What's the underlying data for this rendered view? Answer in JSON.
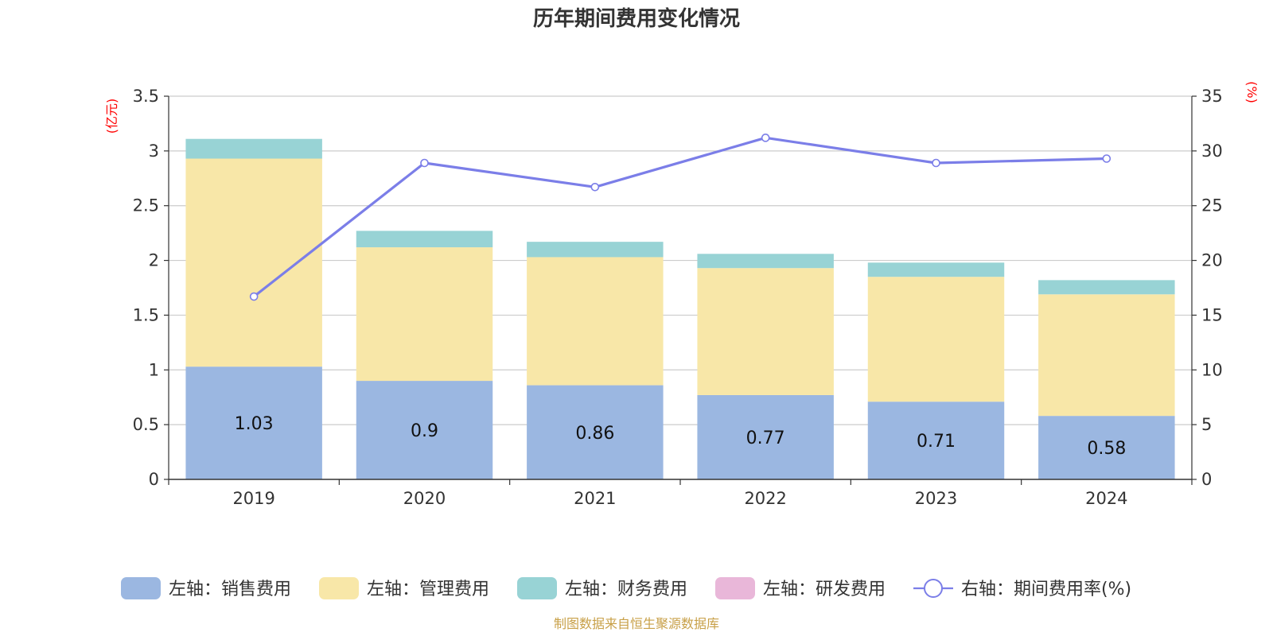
{
  "chart_data": {
    "type": "bar",
    "stacked": true,
    "title": "历年期间费用变化情况",
    "categories": [
      "2019",
      "2020",
      "2021",
      "2022",
      "2023",
      "2024"
    ],
    "left_axis": {
      "unit": "(亿元)",
      "range": [
        0,
        3.5
      ],
      "ticks": [
        "0",
        "0.5",
        "1",
        "1.5",
        "2",
        "2.5",
        "3",
        "3.5"
      ]
    },
    "right_axis": {
      "unit": "(%)",
      "range": [
        0,
        35
      ],
      "ticks": [
        "0",
        "5",
        "10",
        "15",
        "20",
        "25",
        "30",
        "35"
      ]
    },
    "grid": true,
    "legend_position": "bottom",
    "series": [
      {
        "name": "左轴：销售费用",
        "axis": "left",
        "type": "bar",
        "color": "#9bb7e1",
        "values": [
          1.03,
          0.9,
          0.86,
          0.77,
          0.71,
          0.58
        ],
        "labels": [
          "1.03",
          "0.9",
          "0.86",
          "0.77",
          "0.71",
          "0.58"
        ]
      },
      {
        "name": "左轴：管理费用",
        "axis": "left",
        "type": "bar",
        "color": "#f8e7a8",
        "values": [
          1.9,
          1.22,
          1.17,
          1.16,
          1.14,
          1.11
        ]
      },
      {
        "name": "左轴：财务费用",
        "axis": "left",
        "type": "bar",
        "color": "#98d3d5",
        "values": [
          0.18,
          0.15,
          0.14,
          0.13,
          0.13,
          0.13
        ]
      },
      {
        "name": "左轴：研发费用",
        "axis": "left",
        "type": "bar",
        "color": "#e9b7d9",
        "values": [
          0,
          0,
          0,
          0,
          0,
          0
        ]
      },
      {
        "name": "右轴：期间费用率(%)",
        "axis": "right",
        "type": "line",
        "color": "#7b7ee8",
        "values": [
          16.7,
          28.9,
          26.7,
          31.2,
          28.9,
          29.3
        ]
      }
    ],
    "source": "制图数据来自恒生聚源数据库"
  }
}
